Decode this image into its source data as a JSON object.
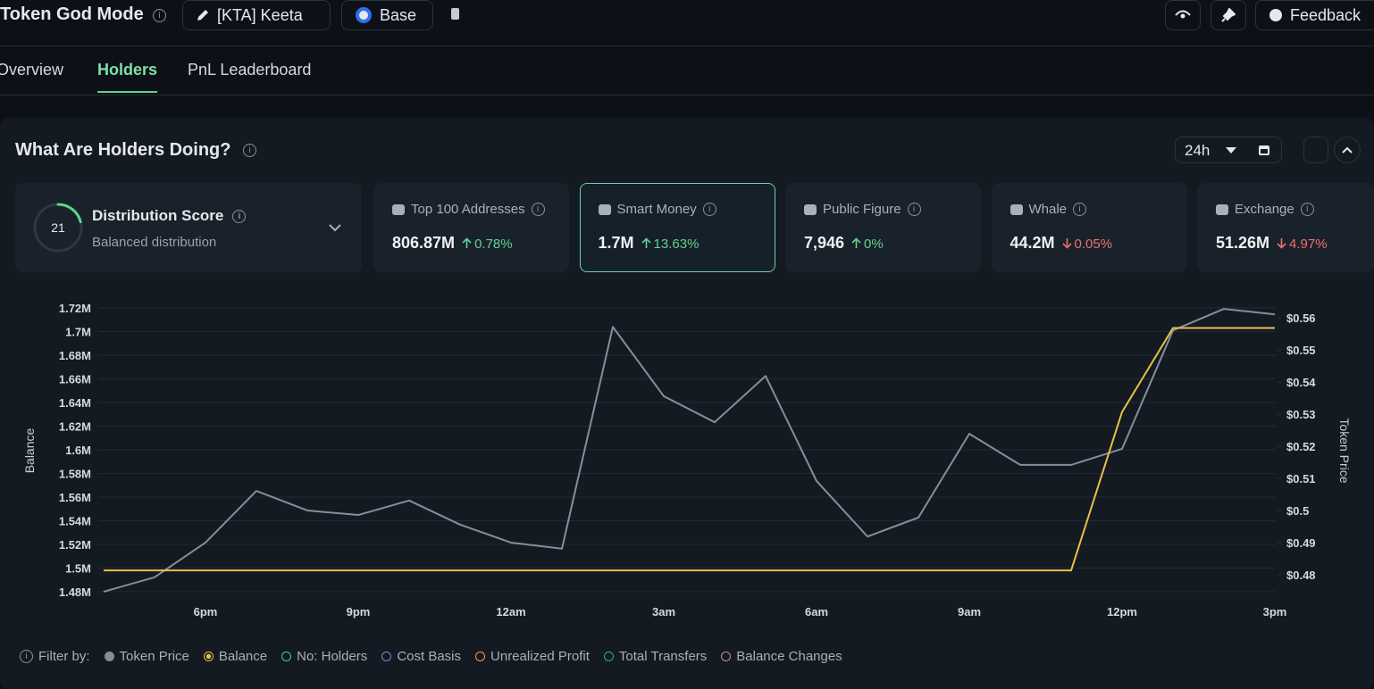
{
  "header": {
    "title": "Token God Mode",
    "token": "[KTA] Keeta",
    "chain": "Base",
    "feedback": "Feedback"
  },
  "tabs": [
    {
      "label": "Overview",
      "active": false
    },
    {
      "label": "Holders",
      "active": true
    },
    {
      "label": "PnL Leaderboard",
      "active": false
    }
  ],
  "panel": {
    "title": "What Are Holders Doing?",
    "range": "24h"
  },
  "distribution": {
    "score": 21,
    "label": "Distribution Score",
    "status": "Balanced distribution",
    "max": 100,
    "color": "#5fd38d"
  },
  "cards": [
    {
      "label": "Top 100 Addresses",
      "value": "806.87M",
      "change": "0.78%",
      "direction": "up",
      "selected": false
    },
    {
      "label": "Smart Money",
      "value": "1.7M",
      "change": "13.63%",
      "direction": "up",
      "selected": true
    },
    {
      "label": "Public Figure",
      "value": "7,946",
      "change": "0%",
      "direction": "up",
      "selected": false
    },
    {
      "label": "Whale",
      "value": "44.2M",
      "change": "0.05%",
      "direction": "down",
      "selected": false
    },
    {
      "label": "Exchange",
      "value": "51.26M",
      "change": "4.97%",
      "direction": "down",
      "selected": false
    }
  ],
  "chart_data": {
    "type": "line",
    "ylabel": "Balance",
    "y2label": "Token Price",
    "categories": [
      null,
      null,
      "6pm",
      null,
      null,
      "9pm",
      null,
      null,
      "12am",
      null,
      null,
      "3am",
      null,
      null,
      "6am",
      null,
      null,
      "9am",
      null,
      null,
      "12pm",
      null,
      null,
      "3pm"
    ],
    "series": [
      {
        "name": "Token Price",
        "color": "#858f99",
        "axis": "y2",
        "values": [
          0.4747,
          0.4792,
          0.49,
          0.5061,
          0.5,
          0.4986,
          0.5031,
          0.4956,
          0.49,
          0.4881,
          0.5572,
          0.5356,
          0.5275,
          0.5419,
          0.5092,
          0.4919,
          0.4978,
          0.5239,
          0.5142,
          0.5142,
          0.5192,
          0.5561,
          0.5628,
          0.5611
        ]
      },
      {
        "name": "Balance",
        "color": "#e8c04a",
        "values": [
          1498000,
          1498000,
          1498000,
          1498000,
          1498000,
          1498000,
          1498000,
          1498000,
          1498000,
          1498000,
          1498000,
          1498000,
          1498000,
          1498000,
          1498000,
          1498000,
          1498000,
          1498000,
          1498000,
          1498000,
          1632000,
          1703000,
          1703000,
          1703000
        ]
      }
    ],
    "ylim": [
      1480000,
      1720000
    ],
    "yticks": [
      {
        "value": 1480000,
        "label": "1.48M"
      },
      {
        "value": 1500000,
        "label": "1.5M"
      },
      {
        "value": 1520000,
        "label": "1.52M"
      },
      {
        "value": 1540000,
        "label": "1.54M"
      },
      {
        "value": 1560000,
        "label": "1.56M"
      },
      {
        "value": 1580000,
        "label": "1.58M"
      },
      {
        "value": 1600000,
        "label": "1.6M"
      },
      {
        "value": 1620000,
        "label": "1.62M"
      },
      {
        "value": 1640000,
        "label": "1.64M"
      },
      {
        "value": 1660000,
        "label": "1.66M"
      },
      {
        "value": 1680000,
        "label": "1.68M"
      },
      {
        "value": 1700000,
        "label": "1.7M"
      },
      {
        "value": 1720000,
        "label": "1.72M"
      }
    ],
    "y2lim": [
      0.4747,
      0.5631
    ],
    "y2ticks": [
      {
        "value": 0.48,
        "label": "$0.48"
      },
      {
        "value": 0.49,
        "label": "$0.49"
      },
      {
        "value": 0.5,
        "label": "$0.5"
      },
      {
        "value": 0.51,
        "label": "$0.51"
      },
      {
        "value": 0.52,
        "label": "$0.52"
      },
      {
        "value": 0.53,
        "label": "$0.53"
      },
      {
        "value": 0.54,
        "label": "$0.54"
      },
      {
        "value": 0.55,
        "label": "$0.55"
      },
      {
        "value": 0.56,
        "label": "$0.56"
      }
    ],
    "grid": true,
    "filter_label": "Filter by:",
    "filters": [
      {
        "name": "No: Holders",
        "color": "#4fc3a1"
      },
      {
        "name": "Cost Basis",
        "color": "#8f7fd6"
      },
      {
        "name": "Unrealized Profit",
        "color": "#e8a04a"
      },
      {
        "name": "Total Transfers",
        "color": "#3fa38a"
      },
      {
        "name": "Balance Changes",
        "color": "#d67fb0"
      }
    ]
  }
}
